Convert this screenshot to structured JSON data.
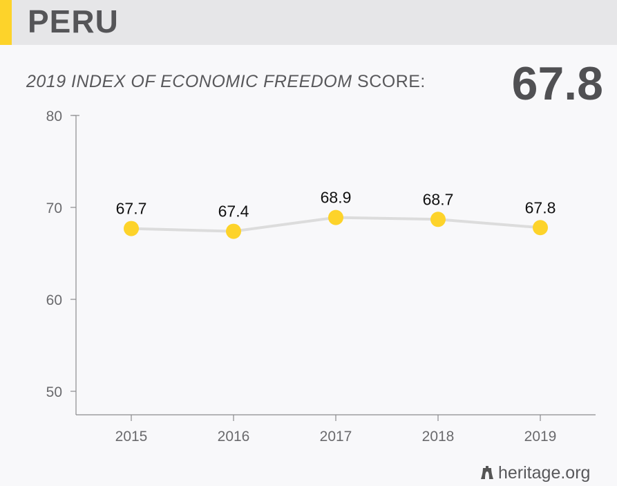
{
  "header": {
    "title": "PERU"
  },
  "subtitle": {
    "italic": "2019 INDEX OF ECONOMIC FREEDOM",
    "rest": " SCORE:"
  },
  "score": "67.8",
  "chart_data": {
    "type": "line",
    "categories": [
      "2015",
      "2016",
      "2017",
      "2018",
      "2019"
    ],
    "values": [
      67.7,
      67.4,
      68.9,
      68.7,
      67.8
    ],
    "data_labels": [
      "67.7",
      "67.4",
      "68.9",
      "68.7",
      "67.8"
    ],
    "yticks": [
      50,
      60,
      70,
      80
    ],
    "ylim": [
      47.5,
      80
    ],
    "grid": false,
    "colors": {
      "marker": "#fdd32a",
      "line": "#dcdcdc",
      "axis": "#8a8a8d"
    }
  },
  "footer": {
    "logo_text": "heritage.org",
    "icon": "liberty-bell-icon"
  }
}
